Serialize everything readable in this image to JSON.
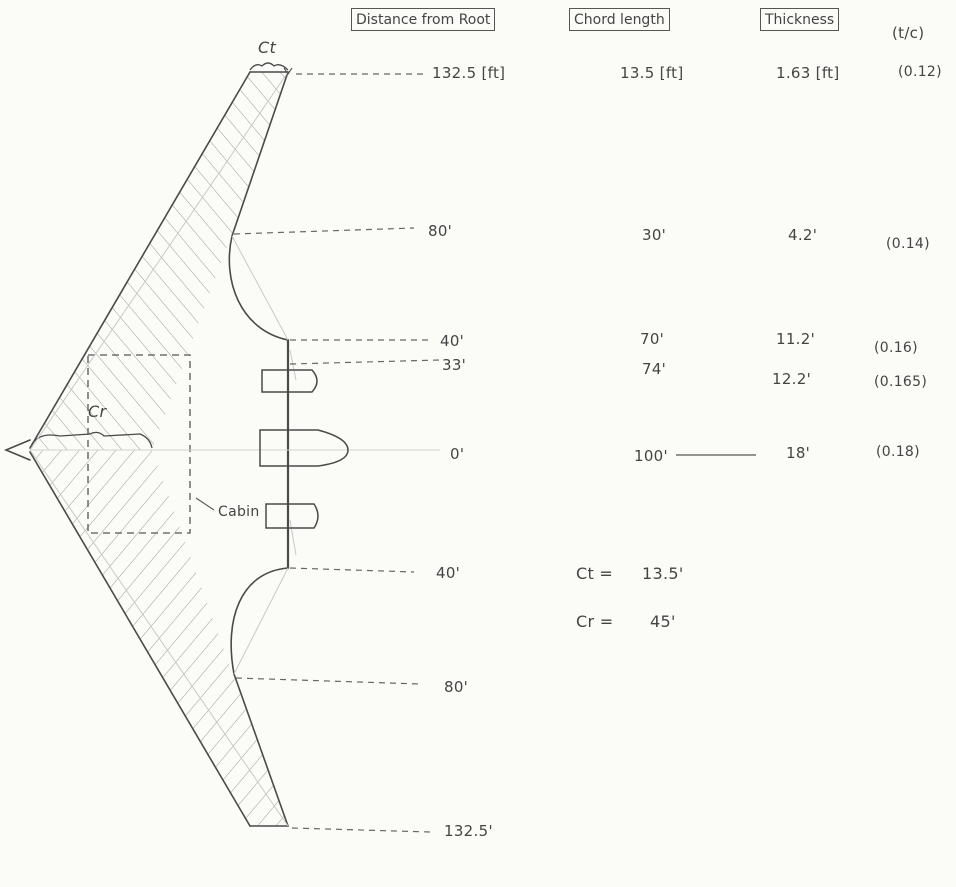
{
  "headers": {
    "distance": "Distance from Root",
    "chord": "Chord length",
    "thickness": "Thickness",
    "tc": "(t/c)"
  },
  "rows": [
    {
      "distance": "132.5 [ft]",
      "chord": "13.5 [ft]",
      "thickness": "1.63 [ft]",
      "tc": "(0.12)"
    },
    {
      "distance": "80'",
      "chord": "30'",
      "thickness": "4.2'",
      "tc": "(0.14)"
    },
    {
      "distance": "40'",
      "chord": "70'",
      "thickness": "11.2'",
      "tc": "(0.16)"
    },
    {
      "distance": "33'",
      "chord": "74'",
      "thickness": "12.2'",
      "tc": "(0.165)"
    },
    {
      "distance": "0'",
      "chord": "100'",
      "thickness": "18'",
      "tc": "(0.18)"
    }
  ],
  "lower_stations": [
    "40'",
    "80'",
    "132.5'"
  ],
  "labels": {
    "ct": "Ct",
    "cr": "Cr",
    "cabin": "Cabin"
  },
  "summary": [
    {
      "label": "Ct =",
      "value": "13.5'"
    },
    {
      "label": "Cr =",
      "value": "45'"
    }
  ]
}
